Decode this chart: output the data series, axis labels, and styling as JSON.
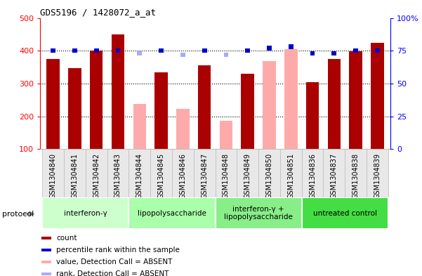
{
  "title": "GDS5196 / 1428072_a_at",
  "samples": [
    "GSM1304840",
    "GSM1304841",
    "GSM1304842",
    "GSM1304843",
    "GSM1304844",
    "GSM1304845",
    "GSM1304846",
    "GSM1304847",
    "GSM1304848",
    "GSM1304849",
    "GSM1304850",
    "GSM1304851",
    "GSM1304836",
    "GSM1304837",
    "GSM1304838",
    "GSM1304839"
  ],
  "bar_values": [
    375,
    347,
    400,
    450,
    238,
    333,
    222,
    356,
    187,
    330,
    368,
    405,
    305,
    375,
    398,
    425
  ],
  "bar_absent": [
    false,
    false,
    false,
    false,
    true,
    false,
    true,
    false,
    true,
    false,
    true,
    true,
    false,
    false,
    false,
    false
  ],
  "rank_values": [
    75,
    75,
    75,
    75,
    73,
    75,
    72,
    75,
    72,
    75,
    77,
    78,
    73,
    73,
    75,
    75
  ],
  "rank_absent": [
    false,
    false,
    false,
    false,
    true,
    false,
    true,
    false,
    true,
    false,
    false,
    false,
    false,
    false,
    false,
    false
  ],
  "ylim_left": [
    100,
    500
  ],
  "ylim_right": [
    0,
    100
  ],
  "yticks_left": [
    100,
    200,
    300,
    400,
    500
  ],
  "yticks_right": [
    0,
    25,
    50,
    75,
    100
  ],
  "ytick_labels_right": [
    "0",
    "25",
    "50",
    "75",
    "100%"
  ],
  "color_bar_present": "#aa0000",
  "color_bar_absent": "#ffaaaa",
  "color_rank_present": "#0000cc",
  "color_rank_absent": "#aaaaff",
  "protocol_groups": [
    {
      "label": "interferon-γ",
      "start": 0,
      "end": 3,
      "color": "#ccffcc"
    },
    {
      "label": "lipopolysaccharide",
      "start": 4,
      "end": 7,
      "color": "#aaffaa"
    },
    {
      "label": "interferon-γ +\nlipopolysaccharide",
      "start": 8,
      "end": 11,
      "color": "#88ee88"
    },
    {
      "label": "untreated control",
      "start": 12,
      "end": 15,
      "color": "#44dd44"
    }
  ],
  "protocol_label": "protocol",
  "legend_labels": [
    "count",
    "percentile rank within the sample",
    "value, Detection Call = ABSENT",
    "rank, Detection Call = ABSENT"
  ],
  "legend_colors": [
    "#aa0000",
    "#0000cc",
    "#ffaaaa",
    "#aaaaff"
  ]
}
